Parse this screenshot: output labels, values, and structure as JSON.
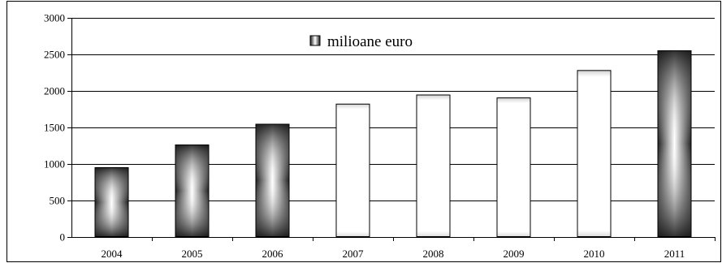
{
  "chart_data": {
    "type": "bar",
    "title": "",
    "xlabel": "",
    "ylabel": "",
    "categories": [
      "2004",
      "2005",
      "2006",
      "2007",
      "2008",
      "2009",
      "2010",
      "2011"
    ],
    "series": [
      {
        "name": "milioane euro",
        "values": [
          955,
          1265,
          1550,
          1825,
          1950,
          1910,
          2285,
          2555
        ]
      }
    ],
    "ylim": [
      0,
      3000
    ],
    "yticks": [
      0,
      500,
      1000,
      1500,
      2000,
      2500,
      3000
    ],
    "grid": true,
    "legend_position": "top-center",
    "colors": {
      "bar_edge": "#000000",
      "bar_dark": "#1a1a1a",
      "bar_light": "#ffffff",
      "gridline": "#000000"
    }
  }
}
